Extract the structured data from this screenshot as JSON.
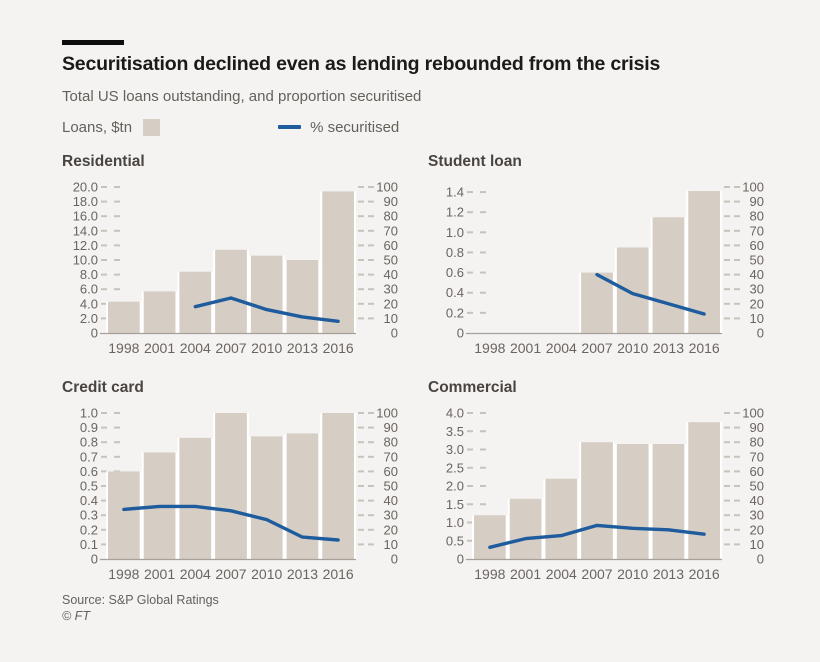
{
  "title": "Securitisation declined even as lending rebounded from the crisis",
  "subtitle": "Total US loans outstanding, and proportion securitised",
  "legend": {
    "bar_label": "Loans, $tn",
    "line_label": "% securitised"
  },
  "footer": {
    "source": "Source: S&P Global Ratings",
    "copyright": "© FT"
  },
  "colors": {
    "background": "#f4f3f1",
    "rule": "#0d0d0d",
    "title": "#1c1a18",
    "subtitle": "#66605b",
    "panel_title": "#4a4441",
    "axis_text": "#6b6460",
    "bar": "#d6cdc4",
    "line": "#1e5c9e",
    "baseline": "#a7a19b",
    "tick_dash": "#c9c2ba",
    "bar_gap": "#ffffff"
  },
  "chart_data": [
    {
      "name": "Residential",
      "type": "bar+line",
      "categories": [
        "1998",
        "2001",
        "2004",
        "2007",
        "2010",
        "2013",
        "2016"
      ],
      "series": [
        {
          "name": "Loans, $tn",
          "type": "bar",
          "axis": "left",
          "values": [
            4.3,
            5.7,
            8.4,
            11.4,
            10.6,
            10.0,
            19.4
          ]
        },
        {
          "name": "% securitised",
          "type": "line",
          "axis": "right",
          "values": [
            null,
            null,
            18,
            24,
            16,
            11,
            8
          ]
        }
      ],
      "left_axis": {
        "tick_labels": [
          "0",
          "2.0",
          "4.0",
          "6.0",
          "8.0",
          "10.0",
          "12.0",
          "14.0",
          "16.0",
          "18.0",
          "20.0"
        ],
        "tick_values": [
          0,
          2,
          4,
          6,
          8,
          10,
          12,
          14,
          16,
          18,
          20
        ],
        "scale_max": 20
      },
      "right_axis": {
        "tick_labels": [
          "0",
          "10",
          "20",
          "30",
          "40",
          "50",
          "60",
          "70",
          "80",
          "90",
          "100"
        ],
        "tick_values": [
          0,
          10,
          20,
          30,
          40,
          50,
          60,
          70,
          80,
          90,
          100
        ],
        "scale_max": 100
      }
    },
    {
      "name": "Student loan",
      "type": "bar+line",
      "categories": [
        "1998",
        "2001",
        "2004",
        "2007",
        "2010",
        "2013",
        "2016"
      ],
      "series": [
        {
          "name": "Loans, $tn",
          "type": "bar",
          "axis": "left",
          "values": [
            0,
            0,
            0,
            0.6,
            0.85,
            1.15,
            1.41
          ]
        },
        {
          "name": "% securitised",
          "type": "line",
          "axis": "right",
          "values": [
            null,
            null,
            null,
            40,
            27,
            20,
            13
          ]
        }
      ],
      "left_axis": {
        "tick_labels": [
          "0",
          "0.2",
          "0.4",
          "0.6",
          "0.8",
          "1.0",
          "1.2",
          "1.4"
        ],
        "tick_values": [
          0,
          0.2,
          0.4,
          0.6,
          0.8,
          1.0,
          1.2,
          1.4
        ],
        "scale_max": 1.45
      },
      "right_axis": {
        "tick_labels": [
          "0",
          "10",
          "20",
          "30",
          "40",
          "50",
          "60",
          "70",
          "80",
          "90",
          "100"
        ],
        "tick_values": [
          0,
          10,
          20,
          30,
          40,
          50,
          60,
          70,
          80,
          90,
          100
        ],
        "scale_max": 100
      }
    },
    {
      "name": "Credit card",
      "type": "bar+line",
      "categories": [
        "1998",
        "2001",
        "2004",
        "2007",
        "2010",
        "2013",
        "2016"
      ],
      "series": [
        {
          "name": "Loans, $tn",
          "type": "bar",
          "axis": "left",
          "values": [
            0.6,
            0.73,
            0.83,
            1.0,
            0.84,
            0.86,
            1.0
          ]
        },
        {
          "name": "% securitised",
          "type": "line",
          "axis": "right",
          "values": [
            34,
            36,
            36,
            33,
            27,
            15,
            13
          ]
        }
      ],
      "left_axis": {
        "tick_labels": [
          "0",
          "0.1",
          "0.2",
          "0.3",
          "0.4",
          "0.5",
          "0.6",
          "0.7",
          "0.8",
          "0.9",
          "1.0"
        ],
        "tick_values": [
          0,
          0.1,
          0.2,
          0.3,
          0.4,
          0.5,
          0.6,
          0.7,
          0.8,
          0.9,
          1.0
        ],
        "scale_max": 1.0
      },
      "right_axis": {
        "tick_labels": [
          "0",
          "10",
          "20",
          "30",
          "40",
          "50",
          "60",
          "70",
          "80",
          "90",
          "100"
        ],
        "tick_values": [
          0,
          10,
          20,
          30,
          40,
          50,
          60,
          70,
          80,
          90,
          100
        ],
        "scale_max": 100
      }
    },
    {
      "name": "Commercial",
      "type": "bar+line",
      "categories": [
        "1998",
        "2001",
        "2004",
        "2007",
        "2010",
        "2013",
        "2016"
      ],
      "series": [
        {
          "name": "Loans, $tn",
          "type": "bar",
          "axis": "left",
          "values": [
            1.2,
            1.65,
            2.2,
            3.2,
            3.15,
            3.15,
            3.75
          ]
        },
        {
          "name": "% securitised",
          "type": "line",
          "axis": "right",
          "values": [
            8,
            14,
            16,
            23,
            21,
            20,
            17
          ]
        }
      ],
      "left_axis": {
        "tick_labels": [
          "0",
          "0.5",
          "1.0",
          "1.5",
          "2.0",
          "2.5",
          "3.0",
          "3.5",
          "4.0"
        ],
        "tick_values": [
          0,
          0.5,
          1.0,
          1.5,
          2.0,
          2.5,
          3.0,
          3.5,
          4.0
        ],
        "scale_max": 4.0
      },
      "right_axis": {
        "tick_labels": [
          "0",
          "10",
          "20",
          "30",
          "40",
          "50",
          "60",
          "70",
          "80",
          "90",
          "100"
        ],
        "tick_values": [
          0,
          10,
          20,
          30,
          40,
          50,
          60,
          70,
          80,
          90,
          100
        ],
        "scale_max": 100
      }
    }
  ]
}
